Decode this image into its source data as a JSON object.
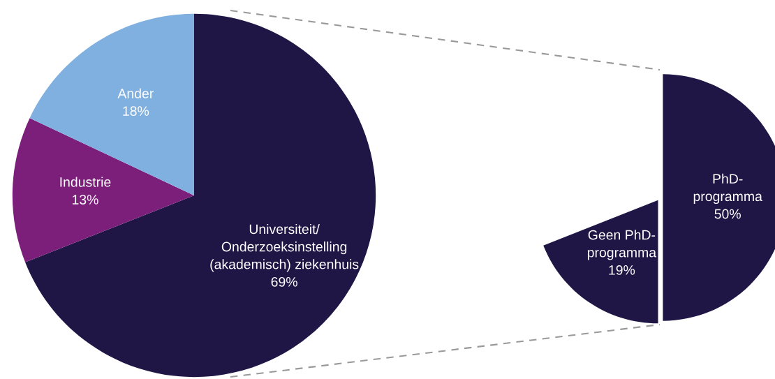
{
  "chart_data": [
    {
      "type": "pie",
      "categories": [
        "Universiteit/\nOnderzoeksinstelling\n(akademisch) ziekenhuis",
        "Industrie",
        "Ander"
      ],
      "values": [
        69,
        13,
        18
      ],
      "value_labels": [
        "69%",
        "13%",
        "18%"
      ],
      "colors": [
        "#1f1646",
        "#7b1f7a",
        "#80b0e0"
      ]
    },
    {
      "type": "pie",
      "categories": [
        "PhD-\nprogramma",
        "Geen PhD-\nprogramma"
      ],
      "values": [
        50,
        19
      ],
      "value_labels": [
        "50%",
        "19%"
      ],
      "colors": [
        "#1f1646",
        "#1f1646"
      ]
    }
  ]
}
